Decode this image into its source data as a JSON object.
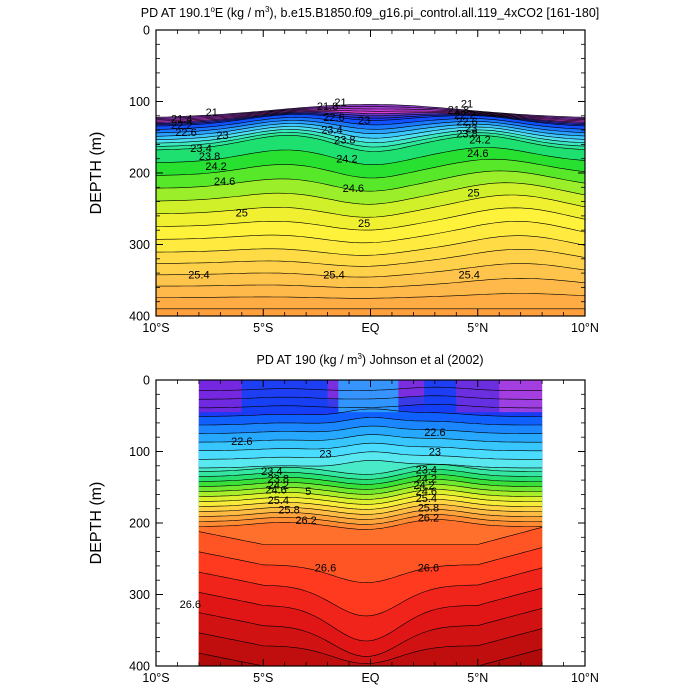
{
  "chart_data": [
    {
      "type": "contour",
      "title_prefix": "PD AT 190.1",
      "title_sup": "o",
      "title_mid": "E (kg / m",
      "title_sup2": "3",
      "title_suffix": "), b.e15.B1850.f09_g16.pi_control.all.119_4xCO2 [161-180]",
      "ylabel": "DEPTH (m)",
      "xlim": [
        -10,
        10
      ],
      "ylim": [
        0,
        400
      ],
      "x_ticks": [
        {
          "value": -10,
          "label": "10°S"
        },
        {
          "value": -5,
          "label": "5°S"
        },
        {
          "value": 0,
          "label": "EQ"
        },
        {
          "value": 5,
          "label": "5°N"
        },
        {
          "value": 10,
          "label": "10°N"
        }
      ],
      "y_ticks": [
        0,
        100,
        200,
        300,
        400
      ],
      "data_x_range": [
        -10,
        10
      ],
      "contour_labels": [
        {
          "text": "21",
          "x": -7.4,
          "y": 115
        },
        {
          "text": "21.4",
          "x": -8.8,
          "y": 124
        },
        {
          "text": "22.2",
          "x": -8.8,
          "y": 133
        },
        {
          "text": "22.6",
          "x": -8.6,
          "y": 143
        },
        {
          "text": "23",
          "x": -6.9,
          "y": 147
        },
        {
          "text": "23.4",
          "x": -7.9,
          "y": 165
        },
        {
          "text": "23.8",
          "x": -7.5,
          "y": 176
        },
        {
          "text": "24.2",
          "x": -7.2,
          "y": 190
        },
        {
          "text": "24.6",
          "x": -6.8,
          "y": 211
        },
        {
          "text": "25",
          "x": -6.0,
          "y": 255
        },
        {
          "text": "25.4",
          "x": -8.0,
          "y": 342
        },
        {
          "text": "21",
          "x": -1.4,
          "y": 101
        },
        {
          "text": "21.8",
          "x": -2.0,
          "y": 106
        },
        {
          "text": "22.6",
          "x": -1.7,
          "y": 122
        },
        {
          "text": "23",
          "x": -0.3,
          "y": 126
        },
        {
          "text": "23.4",
          "x": -1.8,
          "y": 139
        },
        {
          "text": "23.8",
          "x": -1.2,
          "y": 153
        },
        {
          "text": "24.2",
          "x": -1.1,
          "y": 180
        },
        {
          "text": "24.6",
          "x": -0.8,
          "y": 221
        },
        {
          "text": "25",
          "x": -0.3,
          "y": 270
        },
        {
          "text": "25.4",
          "x": -1.7,
          "y": 342
        },
        {
          "text": "21",
          "x": 4.5,
          "y": 103
        },
        {
          "text": "21.8",
          "x": 4.1,
          "y": 111
        },
        {
          "text": "22.2",
          "x": 4.4,
          "y": 118
        },
        {
          "text": "22.6",
          "x": 4.5,
          "y": 128
        },
        {
          "text": "23",
          "x": 4.7,
          "y": 137
        },
        {
          "text": "23.8",
          "x": 4.5,
          "y": 145
        },
        {
          "text": "24.2",
          "x": 5.1,
          "y": 153
        },
        {
          "text": "24.6",
          "x": 5.0,
          "y": 172
        },
        {
          "text": "25",
          "x": 4.8,
          "y": 227
        },
        {
          "text": "25.4",
          "x": 4.6,
          "y": 342
        }
      ]
    },
    {
      "type": "contour",
      "title": "PD AT 190 (kg / m³) Johnson et al (2002)",
      "title_prefix": "PD AT 190 (kg / m",
      "title_sup": "3",
      "title_suffix": ") Johnson et al (2002)",
      "ylabel": "DEPTH (m)",
      "xlim": [
        -10,
        10
      ],
      "ylim": [
        0,
        400
      ],
      "x_ticks": [
        {
          "value": -10,
          "label": "10°S"
        },
        {
          "value": -5,
          "label": "5°S"
        },
        {
          "value": 0,
          "label": "EQ"
        },
        {
          "value": 5,
          "label": "5°N"
        },
        {
          "value": 10,
          "label": "10°N"
        }
      ],
      "y_ticks": [
        0,
        100,
        200,
        300,
        400
      ],
      "data_x_range": [
        -8,
        8
      ],
      "contour_labels": [
        {
          "text": "22.6",
          "x": -6.0,
          "y": 85
        },
        {
          "text": "23",
          "x": -2.1,
          "y": 103
        },
        {
          "text": "23.4",
          "x": -4.6,
          "y": 127
        },
        {
          "text": "23.8",
          "x": -4.3,
          "y": 138
        },
        {
          "text": "24.2",
          "x": -4.3,
          "y": 147
        },
        {
          "text": "24.6",
          "x": -4.4,
          "y": 153
        },
        {
          "text": "5",
          "x": -2.9,
          "y": 155
        },
        {
          "text": "25.4",
          "x": -4.3,
          "y": 168
        },
        {
          "text": "25.8",
          "x": -3.8,
          "y": 181
        },
        {
          "text": "26.2",
          "x": -3.0,
          "y": 196
        },
        {
          "text": "26.6",
          "x": -2.1,
          "y": 262
        },
        {
          "text": "26.6",
          "x": -8.4,
          "y": 313
        },
        {
          "text": "22.6",
          "x": 3.0,
          "y": 73
        },
        {
          "text": "23",
          "x": 3.0,
          "y": 100
        },
        {
          "text": "23.4",
          "x": 2.6,
          "y": 125
        },
        {
          "text": "24.2",
          "x": 2.6,
          "y": 138
        },
        {
          "text": "24.2",
          "x": 2.5,
          "y": 147
        },
        {
          "text": "24.6",
          "x": 2.6,
          "y": 155
        },
        {
          "text": "25.4",
          "x": 2.6,
          "y": 165
        },
        {
          "text": "25.8",
          "x": 2.7,
          "y": 178
        },
        {
          "text": "26.2",
          "x": 2.7,
          "y": 192
        },
        {
          "text": "26.6",
          "x": 2.7,
          "y": 262
        }
      ]
    }
  ]
}
